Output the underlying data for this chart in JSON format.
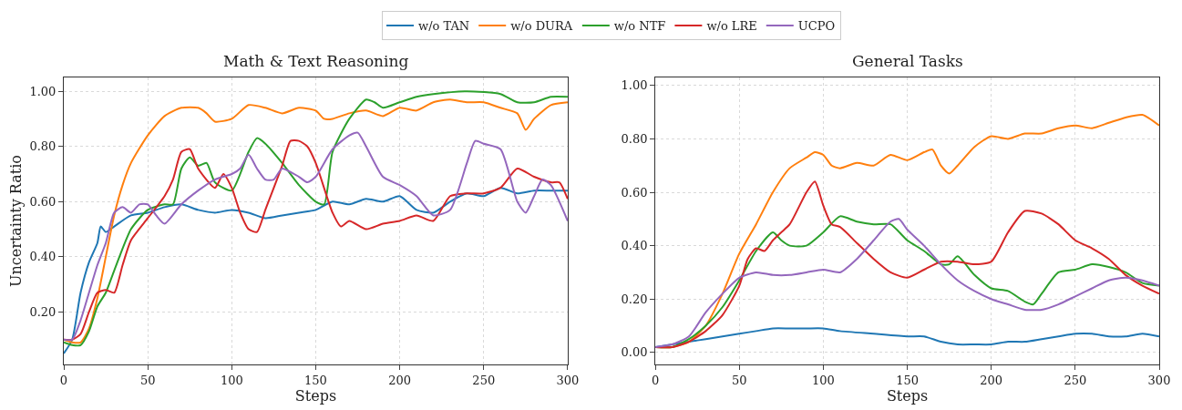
{
  "chart_data": [
    {
      "type": "line",
      "title": "Math & Text Reasoning",
      "xlabel": "Steps",
      "ylabel": "Uncertainty Ratio",
      "xlim": [
        0,
        300
      ],
      "ylim": [
        0.01,
        1.05
      ],
      "xticks": [
        0,
        50,
        100,
        150,
        200,
        250,
        300
      ],
      "yticks": [
        {
          "value": 0.2,
          "label": "0.20"
        },
        {
          "value": 0.4,
          "label": "0.40"
        },
        {
          "value": 0.6,
          "label": "0.60"
        },
        {
          "value": 0.8,
          "label": "0.80"
        },
        {
          "value": 1.0,
          "label": "1.00"
        }
      ],
      "grid": true,
      "legend": "top",
      "line_style": "solid",
      "marker": "none",
      "series": [
        {
          "name": "w/o TAN",
          "color": "#1f77b4",
          "x": [
            0,
            5,
            10,
            15,
            20,
            22,
            25,
            30,
            40,
            50,
            60,
            70,
            80,
            90,
            100,
            110,
            120,
            130,
            140,
            150,
            160,
            170,
            180,
            190,
            200,
            210,
            220,
            230,
            240,
            250,
            260,
            270,
            280,
            290,
            300
          ],
          "values": [
            0.05,
            0.1,
            0.27,
            0.38,
            0.45,
            0.51,
            0.49,
            0.51,
            0.55,
            0.56,
            0.58,
            0.59,
            0.57,
            0.56,
            0.57,
            0.56,
            0.54,
            0.55,
            0.56,
            0.57,
            0.6,
            0.59,
            0.61,
            0.6,
            0.62,
            0.57,
            0.56,
            0.6,
            0.63,
            0.62,
            0.65,
            0.63,
            0.64,
            0.64,
            0.64
          ]
        },
        {
          "name": "w/o DURA",
          "color": "#ff7f0e",
          "x": [
            0,
            5,
            10,
            15,
            20,
            25,
            30,
            35,
            40,
            50,
            60,
            70,
            80,
            85,
            90,
            100,
            110,
            120,
            130,
            140,
            150,
            155,
            160,
            170,
            180,
            190,
            200,
            210,
            220,
            230,
            240,
            250,
            260,
            270,
            275,
            280,
            290,
            300
          ],
          "values": [
            0.1,
            0.09,
            0.09,
            0.14,
            0.25,
            0.4,
            0.55,
            0.66,
            0.74,
            0.84,
            0.91,
            0.94,
            0.94,
            0.92,
            0.89,
            0.9,
            0.95,
            0.94,
            0.92,
            0.94,
            0.93,
            0.9,
            0.9,
            0.92,
            0.93,
            0.91,
            0.94,
            0.93,
            0.96,
            0.97,
            0.96,
            0.96,
            0.94,
            0.92,
            0.86,
            0.9,
            0.95,
            0.96
          ]
        },
        {
          "name": "w/o NTF",
          "color": "#2ca02c",
          "x": [
            0,
            5,
            10,
            15,
            20,
            25,
            30,
            40,
            50,
            60,
            65,
            70,
            75,
            80,
            85,
            90,
            100,
            110,
            115,
            120,
            130,
            140,
            150,
            155,
            160,
            170,
            180,
            185,
            190,
            200,
            210,
            220,
            240,
            260,
            270,
            280,
            290,
            300
          ],
          "values": [
            0.09,
            0.08,
            0.08,
            0.13,
            0.22,
            0.27,
            0.35,
            0.5,
            0.57,
            0.59,
            0.59,
            0.72,
            0.76,
            0.73,
            0.74,
            0.67,
            0.64,
            0.78,
            0.83,
            0.81,
            0.74,
            0.66,
            0.6,
            0.59,
            0.78,
            0.9,
            0.97,
            0.96,
            0.94,
            0.96,
            0.98,
            0.99,
            1.0,
            0.99,
            0.96,
            0.96,
            0.98,
            0.98
          ]
        },
        {
          "name": "w/o LRE",
          "color": "#d62728",
          "x": [
            0,
            5,
            10,
            15,
            20,
            25,
            30,
            35,
            40,
            50,
            60,
            65,
            70,
            75,
            80,
            90,
            95,
            100,
            105,
            110,
            115,
            120,
            130,
            135,
            140,
            145,
            150,
            160,
            165,
            170,
            180,
            190,
            200,
            210,
            220,
            230,
            240,
            250,
            260,
            270,
            280,
            290,
            295,
            300
          ],
          "values": [
            0.1,
            0.1,
            0.12,
            0.2,
            0.27,
            0.28,
            0.27,
            0.37,
            0.46,
            0.54,
            0.62,
            0.68,
            0.78,
            0.79,
            0.72,
            0.65,
            0.7,
            0.65,
            0.56,
            0.5,
            0.49,
            0.57,
            0.73,
            0.82,
            0.82,
            0.8,
            0.74,
            0.56,
            0.51,
            0.53,
            0.5,
            0.52,
            0.53,
            0.55,
            0.53,
            0.62,
            0.63,
            0.63,
            0.65,
            0.72,
            0.69,
            0.67,
            0.67,
            0.61
          ]
        },
        {
          "name": "UCPO",
          "color": "#9467bd",
          "x": [
            0,
            5,
            10,
            15,
            20,
            25,
            30,
            35,
            40,
            45,
            50,
            55,
            60,
            70,
            80,
            90,
            100,
            105,
            110,
            115,
            120,
            125,
            130,
            140,
            145,
            150,
            160,
            170,
            175,
            180,
            190,
            200,
            210,
            220,
            230,
            240,
            245,
            250,
            260,
            270,
            275,
            280,
            285,
            290,
            300
          ],
          "values": [
            0.1,
            0.1,
            0.17,
            0.27,
            0.37,
            0.45,
            0.56,
            0.58,
            0.56,
            0.59,
            0.59,
            0.55,
            0.52,
            0.59,
            0.64,
            0.68,
            0.7,
            0.72,
            0.77,
            0.72,
            0.68,
            0.68,
            0.72,
            0.69,
            0.67,
            0.69,
            0.79,
            0.84,
            0.85,
            0.8,
            0.69,
            0.66,
            0.62,
            0.55,
            0.57,
            0.74,
            0.82,
            0.81,
            0.79,
            0.6,
            0.56,
            0.62,
            0.68,
            0.66,
            0.53
          ]
        }
      ]
    },
    {
      "type": "line",
      "title": "General Tasks",
      "xlabel": "Steps",
      "xlim": [
        0,
        300
      ],
      "ylim": [
        -0.045,
        1.03
      ],
      "xticks": [
        0,
        50,
        100,
        150,
        200,
        250,
        300
      ],
      "yticks": [
        {
          "value": 0.0,
          "label": "0.00"
        },
        {
          "value": 0.2,
          "label": "0.20"
        },
        {
          "value": 0.4,
          "label": "0.40"
        },
        {
          "value": 0.6,
          "label": "0.60"
        },
        {
          "value": 0.8,
          "label": "0.80"
        },
        {
          "value": 1.0,
          "label": "1.00"
        }
      ],
      "grid": true,
      "line_style": "solid",
      "marker": "none",
      "series": [
        {
          "color": "#1f77b4",
          "x": [
            0,
            20,
            30,
            50,
            60,
            70,
            80,
            90,
            100,
            110,
            130,
            150,
            160,
            170,
            180,
            190,
            200,
            210,
            220,
            230,
            240,
            250,
            260,
            270,
            280,
            290,
            300
          ],
          "values": [
            0.02,
            0.04,
            0.05,
            0.07,
            0.08,
            0.09,
            0.09,
            0.09,
            0.09,
            0.08,
            0.07,
            0.06,
            0.06,
            0.04,
            0.03,
            0.03,
            0.03,
            0.04,
            0.04,
            0.05,
            0.06,
            0.07,
            0.07,
            0.06,
            0.06,
            0.07,
            0.06
          ]
        },
        {
          "color": "#ff7f0e",
          "x": [
            0,
            10,
            20,
            30,
            40,
            50,
            60,
            70,
            80,
            90,
            95,
            100,
            105,
            110,
            120,
            130,
            140,
            150,
            160,
            165,
            170,
            175,
            180,
            190,
            200,
            210,
            220,
            230,
            240,
            250,
            260,
            270,
            280,
            290,
            300
          ],
          "values": [
            0.02,
            0.02,
            0.04,
            0.1,
            0.22,
            0.37,
            0.48,
            0.6,
            0.69,
            0.73,
            0.75,
            0.74,
            0.7,
            0.69,
            0.71,
            0.7,
            0.74,
            0.72,
            0.75,
            0.76,
            0.7,
            0.67,
            0.7,
            0.77,
            0.81,
            0.8,
            0.82,
            0.82,
            0.84,
            0.85,
            0.84,
            0.86,
            0.88,
            0.89,
            0.85
          ]
        },
        {
          "color": "#2ca02c",
          "x": [
            0,
            10,
            20,
            30,
            40,
            50,
            60,
            70,
            75,
            80,
            90,
            100,
            110,
            120,
            130,
            140,
            150,
            160,
            170,
            175,
            180,
            190,
            200,
            210,
            220,
            225,
            230,
            240,
            250,
            260,
            270,
            280,
            290,
            300
          ],
          "values": [
            0.02,
            0.02,
            0.05,
            0.1,
            0.17,
            0.27,
            0.38,
            0.45,
            0.42,
            0.4,
            0.4,
            0.45,
            0.51,
            0.49,
            0.48,
            0.48,
            0.42,
            0.38,
            0.33,
            0.33,
            0.36,
            0.29,
            0.24,
            0.23,
            0.19,
            0.18,
            0.22,
            0.3,
            0.31,
            0.33,
            0.32,
            0.3,
            0.26,
            0.25
          ]
        },
        {
          "color": "#d62728",
          "x": [
            0,
            10,
            20,
            30,
            40,
            50,
            55,
            60,
            65,
            70,
            75,
            80,
            90,
            95,
            100,
            105,
            110,
            120,
            130,
            140,
            150,
            160,
            170,
            180,
            190,
            200,
            210,
            220,
            230,
            240,
            250,
            260,
            270,
            280,
            290,
            300
          ],
          "values": [
            0.02,
            0.02,
            0.04,
            0.08,
            0.14,
            0.25,
            0.35,
            0.39,
            0.38,
            0.42,
            0.45,
            0.48,
            0.6,
            0.64,
            0.55,
            0.48,
            0.47,
            0.41,
            0.35,
            0.3,
            0.28,
            0.31,
            0.34,
            0.34,
            0.33,
            0.34,
            0.45,
            0.53,
            0.52,
            0.48,
            0.42,
            0.39,
            0.35,
            0.29,
            0.25,
            0.22
          ]
        },
        {
          "color": "#9467bd",
          "x": [
            0,
            10,
            20,
            30,
            40,
            50,
            60,
            70,
            80,
            90,
            100,
            110,
            120,
            130,
            140,
            145,
            150,
            160,
            170,
            180,
            190,
            200,
            210,
            220,
            230,
            240,
            250,
            260,
            270,
            280,
            290,
            300
          ],
          "values": [
            0.02,
            0.03,
            0.06,
            0.15,
            0.22,
            0.28,
            0.3,
            0.29,
            0.29,
            0.3,
            0.31,
            0.3,
            0.35,
            0.42,
            0.49,
            0.5,
            0.46,
            0.4,
            0.33,
            0.27,
            0.23,
            0.2,
            0.18,
            0.16,
            0.16,
            0.18,
            0.21,
            0.24,
            0.27,
            0.28,
            0.27,
            0.25
          ]
        }
      ]
    }
  ]
}
